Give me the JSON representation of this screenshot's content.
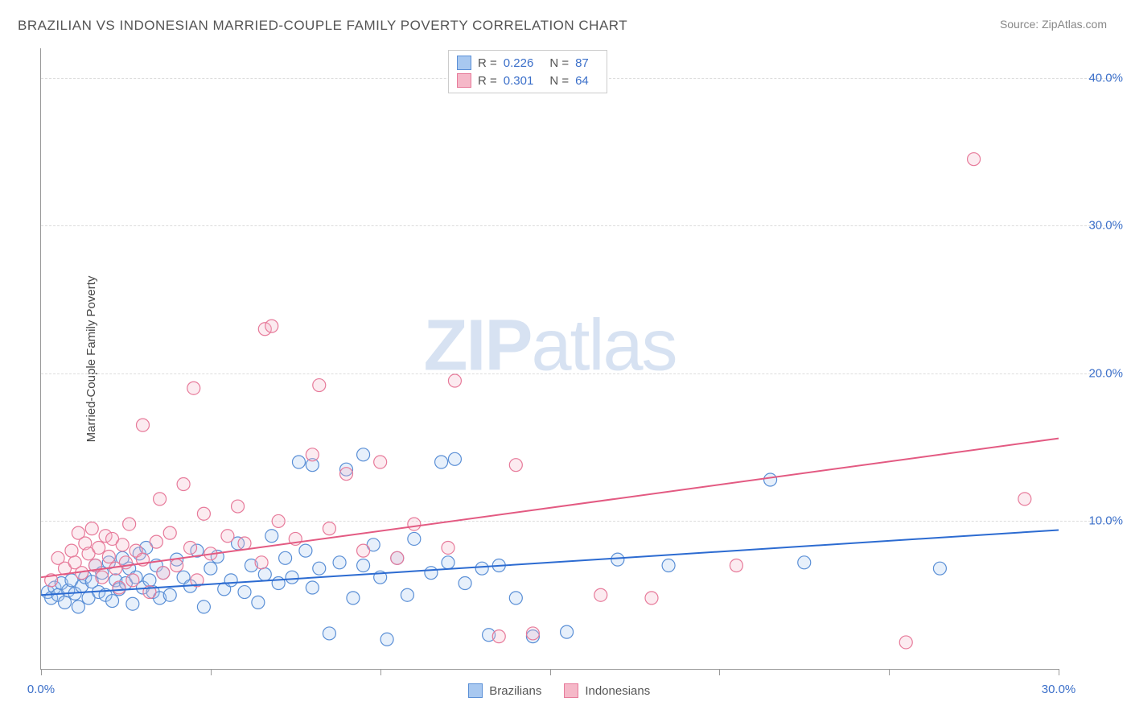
{
  "title": "BRAZILIAN VS INDONESIAN MARRIED-COUPLE FAMILY POVERTY CORRELATION CHART",
  "source": "Source: ZipAtlas.com",
  "y_axis_label": "Married-Couple Family Poverty",
  "watermark": {
    "bold": "ZIP",
    "rest": "atlas"
  },
  "chart": {
    "type": "scatter",
    "background_color": "#ffffff",
    "grid_color": "#dddddd",
    "axis_color": "#999999",
    "xlim": [
      0,
      30
    ],
    "ylim": [
      0,
      42
    ],
    "x_ticks": [
      0,
      5,
      10,
      15,
      20,
      25,
      30
    ],
    "x_tick_labels": {
      "0": "0.0%",
      "30": "30.0%"
    },
    "y_ticks": [
      10,
      20,
      30,
      40
    ],
    "y_tick_labels": {
      "10": "10.0%",
      "20": "20.0%",
      "30": "30.0%",
      "40": "40.0%"
    },
    "marker_radius": 8,
    "marker_fill_opacity": 0.28,
    "marker_stroke_width": 1.2,
    "line_width": 2
  },
  "series": [
    {
      "name": "Brazilians",
      "color_fill": "#a8c8f0",
      "color_stroke": "#5a8fd6",
      "line_color": "#2c6bd1",
      "R": "0.226",
      "N": "87",
      "trend": {
        "x1": 0,
        "y1": 5.0,
        "x2": 30,
        "y2": 9.4
      },
      "points": [
        [
          0.2,
          5.2
        ],
        [
          0.3,
          4.8
        ],
        [
          0.4,
          5.5
        ],
        [
          0.5,
          5.0
        ],
        [
          0.6,
          5.8
        ],
        [
          0.7,
          4.5
        ],
        [
          0.8,
          5.3
        ],
        [
          0.9,
          6.0
        ],
        [
          1.0,
          5.1
        ],
        [
          1.1,
          4.2
        ],
        [
          1.2,
          5.6
        ],
        [
          1.3,
          6.2
        ],
        [
          1.4,
          4.8
        ],
        [
          1.5,
          5.9
        ],
        [
          1.6,
          7.0
        ],
        [
          1.7,
          5.2
        ],
        [
          1.8,
          6.5
        ],
        [
          1.9,
          5.0
        ],
        [
          2.0,
          7.2
        ],
        [
          2.1,
          4.6
        ],
        [
          2.2,
          6.0
        ],
        [
          2.3,
          5.4
        ],
        [
          2.4,
          7.5
        ],
        [
          2.5,
          5.8
        ],
        [
          2.6,
          6.8
        ],
        [
          2.7,
          4.4
        ],
        [
          2.8,
          6.2
        ],
        [
          2.9,
          7.8
        ],
        [
          3.0,
          5.5
        ],
        [
          3.1,
          8.2
        ],
        [
          3.2,
          6.0
        ],
        [
          3.3,
          5.2
        ],
        [
          3.4,
          7.0
        ],
        [
          3.5,
          4.8
        ],
        [
          3.6,
          6.5
        ],
        [
          3.8,
          5.0
        ],
        [
          4.0,
          7.4
        ],
        [
          4.2,
          6.2
        ],
        [
          4.4,
          5.6
        ],
        [
          4.6,
          8.0
        ],
        [
          4.8,
          4.2
        ],
        [
          5.0,
          6.8
        ],
        [
          5.2,
          7.6
        ],
        [
          5.4,
          5.4
        ],
        [
          5.6,
          6.0
        ],
        [
          5.8,
          8.5
        ],
        [
          6.0,
          5.2
        ],
        [
          6.2,
          7.0
        ],
        [
          6.4,
          4.5
        ],
        [
          6.6,
          6.4
        ],
        [
          6.8,
          9.0
        ],
        [
          7.0,
          5.8
        ],
        [
          7.2,
          7.5
        ],
        [
          7.4,
          6.2
        ],
        [
          7.6,
          14.0
        ],
        [
          7.8,
          8.0
        ],
        [
          8.0,
          5.5
        ],
        [
          8.2,
          6.8
        ],
        [
          8.5,
          2.4
        ],
        [
          8.8,
          7.2
        ],
        [
          9.0,
          13.5
        ],
        [
          9.2,
          4.8
        ],
        [
          9.5,
          7.0
        ],
        [
          9.8,
          8.4
        ],
        [
          10.0,
          6.2
        ],
        [
          10.2,
          2.0
        ],
        [
          10.5,
          7.5
        ],
        [
          10.8,
          5.0
        ],
        [
          11.0,
          8.8
        ],
        [
          11.5,
          6.5
        ],
        [
          12.0,
          7.2
        ],
        [
          12.2,
          14.2
        ],
        [
          12.5,
          5.8
        ],
        [
          13.0,
          6.8
        ],
        [
          13.2,
          2.3
        ],
        [
          13.5,
          7.0
        ],
        [
          14.0,
          4.8
        ],
        [
          14.5,
          2.2
        ],
        [
          15.5,
          2.5
        ],
        [
          17.0,
          7.4
        ],
        [
          18.5,
          7.0
        ],
        [
          21.5,
          12.8
        ],
        [
          22.5,
          7.2
        ],
        [
          26.5,
          6.8
        ],
        [
          8.0,
          13.8
        ],
        [
          9.5,
          14.5
        ],
        [
          11.8,
          14.0
        ]
      ]
    },
    {
      "name": "Indonesians",
      "color_fill": "#f5b8c8",
      "color_stroke": "#e77a9a",
      "line_color": "#e35a82",
      "R": "0.301",
      "N": "64",
      "trend": {
        "x1": 0,
        "y1": 6.2,
        "x2": 30,
        "y2": 15.6
      },
      "points": [
        [
          0.3,
          6.0
        ],
        [
          0.5,
          7.5
        ],
        [
          0.7,
          6.8
        ],
        [
          0.9,
          8.0
        ],
        [
          1.0,
          7.2
        ],
        [
          1.1,
          9.2
        ],
        [
          1.2,
          6.5
        ],
        [
          1.3,
          8.5
        ],
        [
          1.4,
          7.8
        ],
        [
          1.5,
          9.5
        ],
        [
          1.6,
          7.0
        ],
        [
          1.7,
          8.2
        ],
        [
          1.8,
          6.2
        ],
        [
          1.9,
          9.0
        ],
        [
          2.0,
          7.6
        ],
        [
          2.1,
          8.8
        ],
        [
          2.2,
          6.8
        ],
        [
          2.3,
          5.5
        ],
        [
          2.4,
          8.4
        ],
        [
          2.5,
          7.2
        ],
        [
          2.6,
          9.8
        ],
        [
          2.7,
          6.0
        ],
        [
          2.8,
          8.0
        ],
        [
          3.0,
          7.4
        ],
        [
          3.2,
          5.2
        ],
        [
          3.4,
          8.6
        ],
        [
          3.5,
          11.5
        ],
        [
          3.6,
          6.5
        ],
        [
          3.8,
          9.2
        ],
        [
          4.0,
          7.0
        ],
        [
          4.2,
          12.5
        ],
        [
          4.4,
          8.2
        ],
        [
          4.5,
          19.0
        ],
        [
          4.6,
          6.0
        ],
        [
          4.8,
          10.5
        ],
        [
          5.0,
          7.8
        ],
        [
          5.5,
          9.0
        ],
        [
          5.8,
          11.0
        ],
        [
          6.0,
          8.5
        ],
        [
          6.5,
          7.2
        ],
        [
          6.6,
          23.0
        ],
        [
          6.8,
          23.2
        ],
        [
          7.0,
          10.0
        ],
        [
          7.5,
          8.8
        ],
        [
          8.0,
          14.5
        ],
        [
          8.2,
          19.2
        ],
        [
          8.5,
          9.5
        ],
        [
          9.0,
          13.2
        ],
        [
          9.5,
          8.0
        ],
        [
          10.0,
          14.0
        ],
        [
          10.5,
          7.5
        ],
        [
          11.0,
          9.8
        ],
        [
          12.0,
          8.2
        ],
        [
          12.2,
          19.5
        ],
        [
          13.5,
          2.2
        ],
        [
          14.0,
          13.8
        ],
        [
          14.5,
          2.4
        ],
        [
          16.5,
          5.0
        ],
        [
          18.0,
          4.8
        ],
        [
          20.5,
          7.0
        ],
        [
          25.5,
          1.8
        ],
        [
          27.5,
          34.5
        ],
        [
          29.0,
          11.5
        ],
        [
          3.0,
          16.5
        ]
      ]
    }
  ],
  "stats_legend_labels": {
    "R": "R =",
    "N": "N ="
  },
  "bottom_legend": [
    "Brazilians",
    "Indonesians"
  ]
}
